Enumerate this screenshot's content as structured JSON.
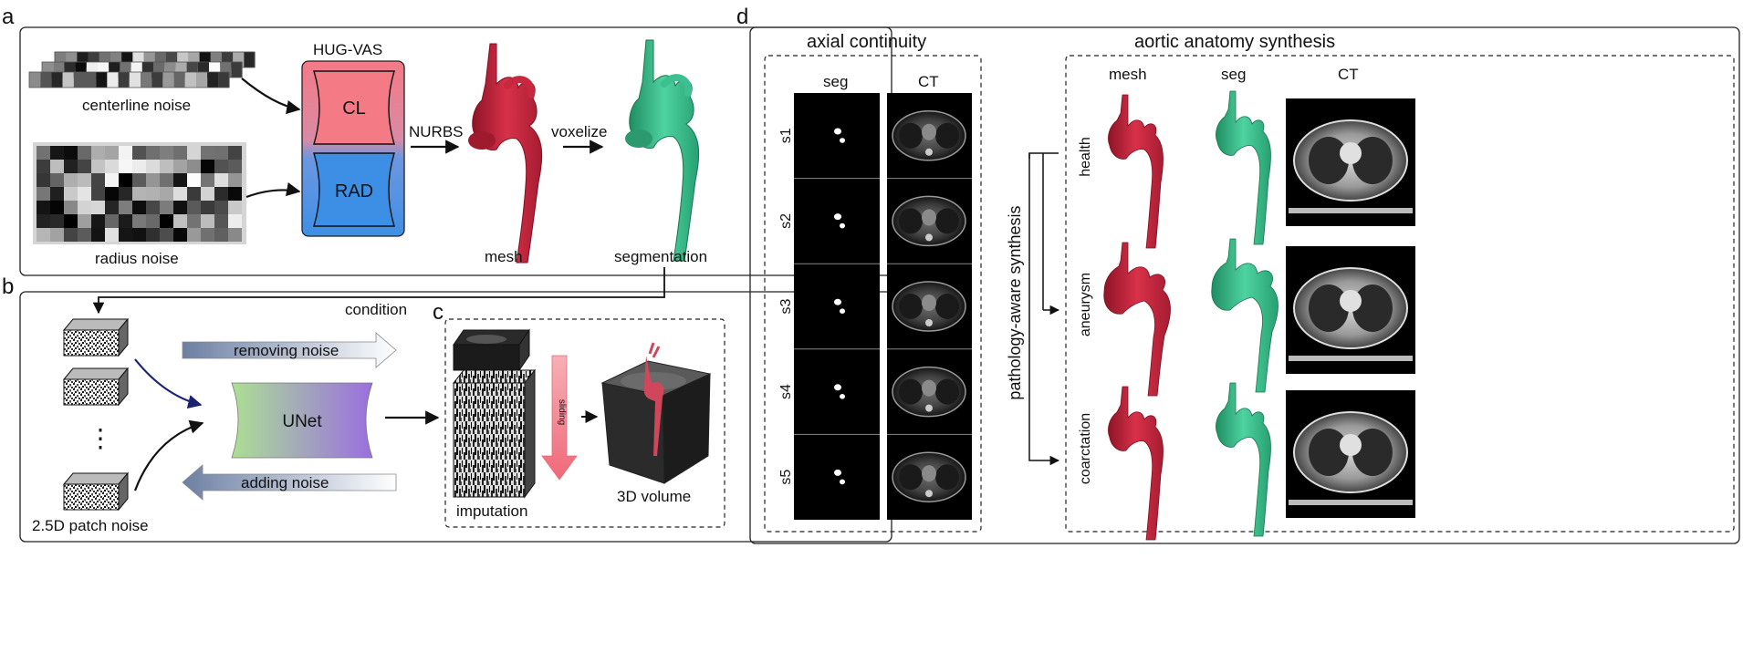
{
  "panels": {
    "a": {
      "letter": "a",
      "centerline_noise": "centerline noise",
      "radius_noise": "radius noise",
      "model_name": "HUG-VAS",
      "cl_label": "CL",
      "rad_label": "RAD",
      "nurbs": "NURBS",
      "voxelize": "voxelize",
      "mesh": "mesh",
      "segmentation": "segmentation"
    },
    "b": {
      "letter": "b",
      "condition": "condition",
      "removing_noise": "removing noise",
      "adding_noise": "adding noise",
      "unet": "UNet",
      "ellipsis": "⋮",
      "patch_noise": "2.5D patch noise"
    },
    "c": {
      "letter": "c",
      "sliding": "sliding",
      "imputation": "imputation",
      "volume": "3D volume"
    },
    "d": {
      "letter": "d",
      "axial_title": "axial continuity",
      "seg_header": "seg",
      "ct_header": "CT",
      "slices": [
        "s1",
        "s2",
        "s3",
        "s4",
        "s5"
      ],
      "synthesis_title": "aortic anatomy synthesis",
      "mesh_header": "mesh",
      "seg_header2": "seg",
      "ct_header2": "CT",
      "pathology_label": "pathology-aware synthesis",
      "rows": [
        "health",
        "aneurysm",
        "coarctation"
      ]
    }
  },
  "colors": {
    "mesh_red": "#c8283f",
    "seg_green": "#3dbf8f",
    "cl_pink": "#f07e86",
    "rad_blue": "#3d8fe6",
    "unet_green": "#a8dd93",
    "unet_purple": "#9a6fe0",
    "arrow_blue": "#7084a6",
    "sliding_pink": "#f07a86"
  }
}
